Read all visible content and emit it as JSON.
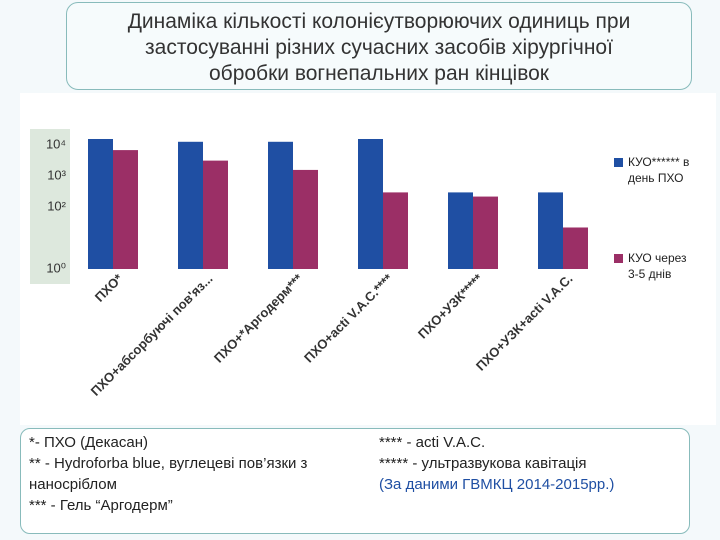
{
  "chart_data": {
    "type": "bar",
    "title": "Динаміка кількості колонієутворюючих одиниць при застосуванні різних сучасних засобів хірургічної обробки вогнепальних ран кінцівок",
    "categories": [
      "ПХО*",
      "ПХО+абсорбуючі пов'яз...",
      "ПХО+*Аргодерм***",
      "ПХО+acti V.A.C.****",
      "ПХО+УЗК*****",
      "ПХО+УЗК+acti V.A.C."
    ],
    "series": [
      {
        "name": "КУО****** в день ПХО",
        "color": "#1f4fa3",
        "values": [
          16000,
          13000,
          13000,
          16000,
          300,
          300
        ]
      },
      {
        "name": "КУО через 3-5 днів",
        "color": "#9b2f66",
        "values": [
          7000,
          3200,
          1600,
          300,
          220,
          22
        ]
      }
    ],
    "log_scale": true,
    "ylim": [
      1,
      20000
    ],
    "yticks": [
      {
        "value": 10000,
        "label": "10⁴"
      },
      {
        "value": 1000,
        "label": "10³"
      },
      {
        "value": 100,
        "label": "10²"
      },
      {
        "value": 1,
        "label": "10⁰"
      }
    ],
    "legend": "right"
  },
  "notes": {
    "left": [
      "*- ПХО (Декасан)",
      "** - Hydroforba blue, вуглецеві пов’язки з наносріблом",
      "*** - Гель “Аргодерм”"
    ],
    "right": [
      "**** - acti V.A.C.",
      "***** - ультразвукова кавітація",
      "(За даними ГВМКЦ 2014-2015рр.)"
    ]
  }
}
